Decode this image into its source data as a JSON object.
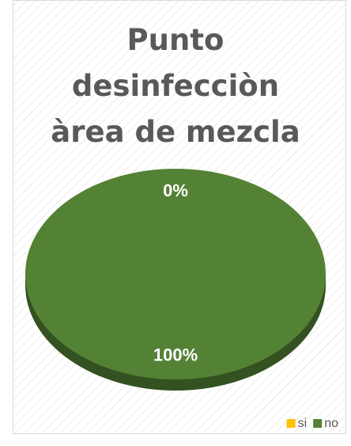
{
  "chart_data": {
    "type": "pie",
    "title": "Punto desinfecciòn àrea de mezcla",
    "categories": [
      "si",
      "no"
    ],
    "values": [
      0,
      100
    ],
    "value_labels": [
      "0%",
      "100%"
    ],
    "colors": [
      "#ffc000",
      "#548235"
    ],
    "legend": "bottom-right"
  }
}
